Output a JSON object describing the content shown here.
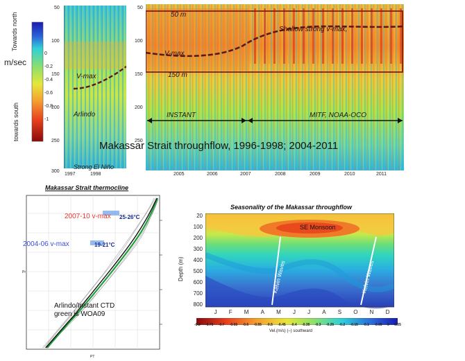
{
  "colorbar": {
    "unit": "m/sec",
    "north_label": "Towards north",
    "south_label": "towards south",
    "ticks": [
      "0",
      "-0.2",
      "-0.4",
      "-0.6",
      "-0.8",
      "-1"
    ]
  },
  "top_left_panel": {
    "y_ticks": [
      "50",
      "100",
      "150",
      "200",
      "250",
      "300"
    ],
    "x_ticks": [
      "1997",
      "1998"
    ],
    "vmax_label": "V-max",
    "program_label": "Arlindo",
    "event_label": "Strong El Niño"
  },
  "top_right_panel": {
    "y_ticks": [
      "50",
      "100",
      "150",
      "200",
      "250"
    ],
    "x_ticks": [
      "2005",
      "2006",
      "2007",
      "2008",
      "2009",
      "2010",
      "2011"
    ],
    "depth_top": "50 m",
    "depth_bottom": "150 m",
    "shallow_label": "Shallow strong v-max,",
    "vmax_label": "V-max",
    "instant_label": "INSTANT",
    "mitf_label": "MITF, NOAA-OCO"
  },
  "main_title": "Makassar Strait throughflow, 1996-1998; 2004-2011",
  "thermocline": {
    "title": "Makassar Strait thermocline",
    "label_2007": "2007-10 v-max",
    "temp_2007": "25-26°C",
    "label_2004": "2004-06 v-max",
    "temp_2004": "19-21°C",
    "ctd_line1": "Arlindo/Instant CTD",
    "ctd_line2": "green is WOA09",
    "xlabel": "PT",
    "ylabel": "Pr",
    "colors": {
      "label_2007": "#e8332a",
      "label_2004": "#3a4fe0",
      "woa": "#1f9e3a"
    }
  },
  "seasonality": {
    "title": "Seasonality of the Makassar throughflow",
    "ylabel": "Depth (m)",
    "y_ticks": [
      "20",
      "100",
      "200",
      "300",
      "400",
      "500",
      "600",
      "700",
      "800"
    ],
    "months": [
      "J",
      "F",
      "M",
      "A",
      "M",
      "J",
      "J",
      "A",
      "S",
      "O",
      "N",
      "D"
    ],
    "monsoon_label": "SE Monsoon",
    "kelvin_label": "Kelvin Waves",
    "cbar_ticks": [
      "-0.8",
      "-0.75",
      "-0.7",
      "-0.65",
      "-0.6",
      "-0.55",
      "-0.5",
      "-0.45",
      "-0.4",
      "-0.35",
      "-0.3",
      "-0.25",
      "-0.2",
      "-0.15",
      "-0.1",
      "-0.05",
      "0",
      "0.05"
    ],
    "cbar_label": "Vel.(m/s) (–) southward"
  },
  "chart_data": [
    {
      "type": "heatmap",
      "title": "Makassar Strait throughflow, 1996-1998; 2004-2011",
      "ylabel": "",
      "ylim": [
        300,
        50
      ],
      "x": [
        "1997",
        "1998"
      ],
      "value_range": [
        -1,
        0.3
      ],
      "unit": "m/sec"
    },
    {
      "type": "heatmap",
      "x": [
        "2005",
        "2006",
        "2007",
        "2008",
        "2009",
        "2010",
        "2011"
      ],
      "ylim": [
        270,
        45
      ],
      "value_range": [
        -1,
        0.3
      ],
      "highlight_depth_range": [
        50,
        150
      ]
    },
    {
      "type": "line",
      "title": "Makassar Strait thermocline",
      "xlabel": "PT",
      "ylabel": "Pr",
      "xlim": [
        6,
        30
      ],
      "ylim": [
        400,
        0
      ],
      "series": [
        {
          "name": "green is WOA09",
          "x": [
            29.5,
            28.5,
            27.5,
            26,
            24,
            22,
            20,
            18,
            16,
            14,
            12,
            10,
            8.5,
            7.5
          ],
          "y": [
            0,
            40,
            60,
            80,
            100,
            130,
            160,
            190,
            220,
            250,
            280,
            320,
            360,
            400
          ]
        }
      ]
    },
    {
      "type": "heatmap",
      "title": "Seasonality of the Makassar throughflow",
      "ylabel": "Depth (m)",
      "categories": [
        "J",
        "F",
        "M",
        "A",
        "M",
        "J",
        "J",
        "A",
        "S",
        "O",
        "N",
        "D"
      ],
      "ylim": [
        800,
        20
      ],
      "value_range": [
        -0.8,
        0.05
      ]
    }
  ]
}
